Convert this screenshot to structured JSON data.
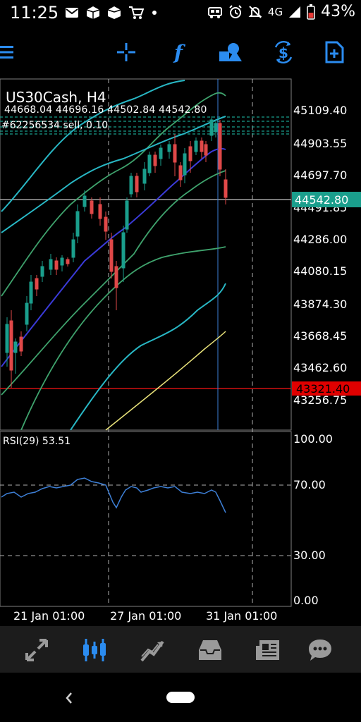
{
  "status_bar": {
    "time": "11:25",
    "network": "4G",
    "battery": "43%"
  },
  "toolbar": {
    "icons": [
      "menu-icon",
      "crosshair-icon",
      "function-icon",
      "objects-icon",
      "timeframe-icon",
      "new-order-icon"
    ],
    "accent": "#2b8cf0"
  },
  "chart": {
    "symbol_title": "US30Cash, H4",
    "ohlc": "44668.04 44696.16 44502.84 44542.80",
    "order_label": "#62256534 sell, 0.10",
    "price_axis": [
      "45109.40",
      "44903.55",
      "44697.70",
      "44491.85",
      "44286.00",
      "44080.15",
      "43874.30",
      "43668.45",
      "43462.60",
      "43256.75"
    ],
    "current_price": "44542.80",
    "current_price_color": "#1a9e8c",
    "level_price": "43321.40",
    "level_color": "#e00000",
    "time_axis": [
      "21 Jan 01:00",
      "27 Jan 01:00",
      "31 Jan 01:00"
    ]
  },
  "rsi": {
    "label": "RSI(29) 53.51",
    "axis": [
      "100.00",
      "70.00",
      "30.00",
      "0.00"
    ]
  },
  "bottom_nav": {
    "items": [
      "quotes-icon",
      "chart-icon",
      "trade-icon",
      "history-icon",
      "news-icon",
      "messages-icon"
    ],
    "active": "chart-icon"
  }
}
